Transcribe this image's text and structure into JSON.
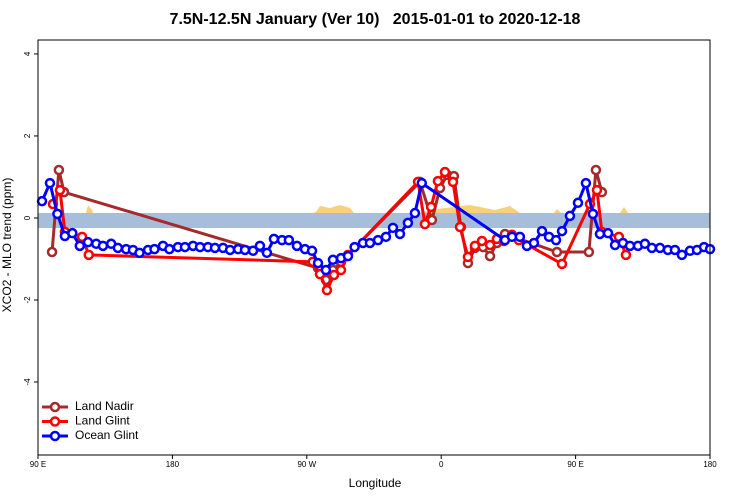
{
  "chart_data": {
    "type": "line",
    "title": "7.5N-12.5N January (Ver 10)   2015-01-01 to 2020-12-18",
    "xlabel": "Longitude",
    "ylabel": "XCO2 - MLO trend (ppm)",
    "xlim": [
      90,
      540
    ],
    "ylim": [
      -5.78,
      4.34
    ],
    "xticks": [
      {
        "value": 90,
        "label": "90 E"
      },
      180,
      {
        "value": 270,
        "label": "90 W"
      },
      {
        "value": 360,
        "label": "0"
      },
      {
        "value": 450,
        "label": "90 E"
      },
      {
        "value": 540,
        "label": "180"
      }
    ],
    "yticks": [
      -4,
      -2,
      0,
      2,
      4
    ],
    "legend": "lower left",
    "series": [
      {
        "name": "Land Nadir",
        "color": "#a52a2a",
        "x": [
          99.4,
          104,
          107.4,
          277.5,
          282.8,
          287.5,
          292.9,
          345.8,
          353.8,
          359.2,
          364,
          368.5,
          373.2,
          377.9,
          382.6,
          388,
          392.7,
          397.3,
          402.7,
          437.5,
          458.9,
          463.6,
          467.6
        ],
        "values": [
          -0.83,
          1.17,
          0.63,
          -1.22,
          -1.51,
          -1.27,
          -1.07,
          0.88,
          -0.05,
          0.73,
          1.05,
          1.02,
          -0.22,
          -1.1,
          -0.73,
          -0.71,
          -0.93,
          -0.61,
          -0.39,
          -0.83,
          -0.83,
          1.17,
          0.63
        ]
      },
      {
        "name": "Land Glint",
        "color": "#ff0000",
        "x": [
          100,
          104.7,
          108,
          119.5,
          124,
          274,
          278.8,
          283.5,
          288.2,
          292.9,
          297.6,
          344.5,
          349.1,
          353.2,
          357.8,
          362.5,
          367.9,
          372.6,
          377.9,
          382.6,
          387.3,
          392.7,
          397.3,
          402,
          407.4,
          412,
          440.9,
          459.6,
          464.3,
          467.6,
          479,
          483.7
        ],
        "values": [
          0.34,
          0.68,
          -0.34,
          -0.46,
          -0.9,
          -1.07,
          -1.37,
          -1.76,
          -1.39,
          -1.27,
          -0.9,
          0.88,
          -0.15,
          0.27,
          0.9,
          1.12,
          0.88,
          -0.22,
          -0.95,
          -0.68,
          -0.56,
          -0.66,
          -0.51,
          -0.56,
          -0.41,
          -0.54,
          -1.12,
          0.34,
          0.68,
          -0.34,
          -0.46,
          -0.9
        ]
      },
      {
        "name": "Ocean Glint",
        "color": "#0000ff",
        "x": [
          92.7,
          98,
          103,
          108,
          113,
          118,
          123.5,
          129,
          133.5,
          139,
          143.5,
          149,
          153.6,
          158,
          163.7,
          168,
          173.7,
          178,
          183.7,
          188.4,
          193.8,
          198.5,
          203.8,
          208.5,
          213.9,
          218.6,
          224,
          228.6,
          234,
          238.6,
          243.3,
          248,
          253.4,
          258,
          263.4,
          268.8,
          273.5,
          277.5,
          282.8,
          287.5,
          292.9,
          297.6,
          302,
          307.6,
          312.3,
          317.7,
          323,
          327.7,
          332.4,
          337.7,
          342.4,
          347,
          402.7,
          407.4,
          412.7,
          417.4,
          422.1,
          427.5,
          432.2,
          436.9,
          440.9,
          446.2,
          451.6,
          456.9,
          461.6,
          466.3,
          471.7,
          476.4,
          481.7,
          486.4,
          491.8,
          496.4,
          501.1,
          506.5,
          511.8,
          516.5,
          521.2,
          526.6,
          531.3,
          536,
          540
        ],
        "values": [
          0.41,
          0.85,
          0.1,
          -0.44,
          -0.37,
          -0.68,
          -0.59,
          -0.63,
          -0.68,
          -0.63,
          -0.73,
          -0.76,
          -0.78,
          -0.85,
          -0.78,
          -0.76,
          -0.68,
          -0.76,
          -0.71,
          -0.71,
          -0.68,
          -0.71,
          -0.71,
          -0.73,
          -0.73,
          -0.78,
          -0.76,
          -0.78,
          -0.8,
          -0.68,
          -0.85,
          -0.51,
          -0.54,
          -0.54,
          -0.68,
          -0.76,
          -0.8,
          -1.1,
          -1.27,
          -1.02,
          -0.98,
          -0.93,
          -0.71,
          -0.61,
          -0.61,
          -0.54,
          -0.46,
          -0.24,
          -0.39,
          -0.12,
          0.12,
          0.85,
          -0.54,
          -0.46,
          -0.46,
          -0.68,
          -0.61,
          -0.32,
          -0.46,
          -0.54,
          -0.32,
          0.05,
          0.37,
          0.85,
          0.1,
          -0.39,
          -0.37,
          -0.66,
          -0.61,
          -0.68,
          -0.68,
          -0.63,
          -0.73,
          -0.73,
          -0.78,
          -0.78,
          -0.9,
          -0.8,
          -0.78,
          -0.71,
          -0.76
        ]
      }
    ]
  }
}
